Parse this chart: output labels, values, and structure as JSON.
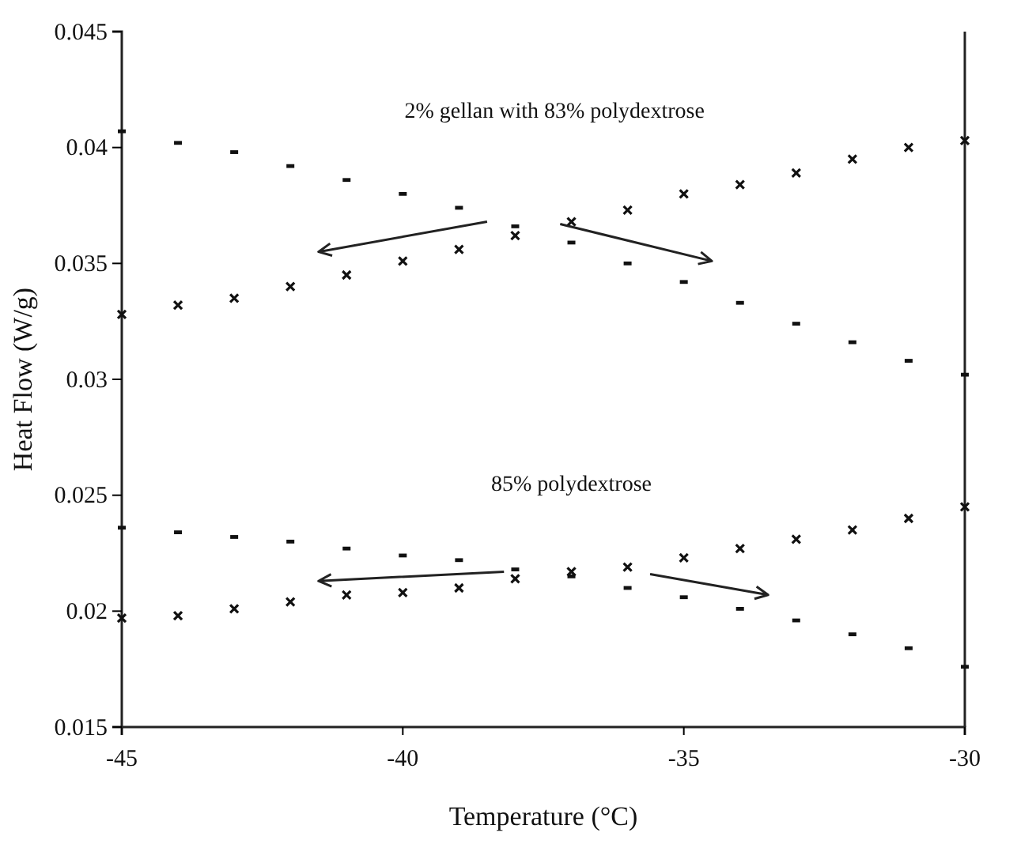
{
  "chart_data": {
    "type": "scatter",
    "xlabel": "Temperature (°C)",
    "ylabel": "Heat Flow (W/g)",
    "x": [
      -45,
      -44,
      -43,
      -42,
      -41,
      -40,
      -39,
      -38,
      -37,
      -36,
      -35,
      -34,
      -33,
      -32,
      -31,
      -30
    ],
    "xlim": [
      -45,
      -30
    ],
    "xticks": [
      -45,
      -40,
      -35,
      -30
    ],
    "ylim": [
      0.015,
      0.045
    ],
    "yticks": [
      0.015,
      0.02,
      0.025,
      0.03,
      0.035,
      0.04,
      0.045
    ],
    "grid": false,
    "series": [
      {
        "color": "#111111",
        "marker": "square",
        "values": [
          0.0407,
          0.0402,
          0.0398,
          0.0392,
          0.0386,
          0.038,
          0.0374,
          0.0366,
          0.0359,
          0.035,
          0.0342,
          0.0333,
          0.0324,
          0.0316,
          0.0308,
          0.0302
        ]
      },
      {
        "color": "#111111",
        "marker": "cross",
        "values": [
          0.0328,
          0.0332,
          0.0335,
          0.034,
          0.0345,
          0.0351,
          0.0356,
          0.0362,
          0.0368,
          0.0373,
          0.038,
          0.0384,
          0.0389,
          0.0395,
          0.04,
          0.0403
        ]
      },
      {
        "color": "#111111",
        "marker": "square",
        "values": [
          0.0236,
          0.0234,
          0.0232,
          0.023,
          0.0227,
          0.0224,
          0.0222,
          0.0218,
          0.0215,
          0.021,
          0.0206,
          0.0201,
          0.0196,
          0.019,
          0.0184,
          0.0176
        ]
      },
      {
        "color": "#111111",
        "marker": "cross",
        "values": [
          0.0197,
          0.0198,
          0.0201,
          0.0204,
          0.0207,
          0.0208,
          0.021,
          0.0214,
          0.0217,
          0.0219,
          0.0223,
          0.0227,
          0.0231,
          0.0235,
          0.024,
          0.0245
        ]
      }
    ],
    "annotations": [
      "2% gellan with 83% polydextrose",
      "85% polydextrose"
    ]
  }
}
